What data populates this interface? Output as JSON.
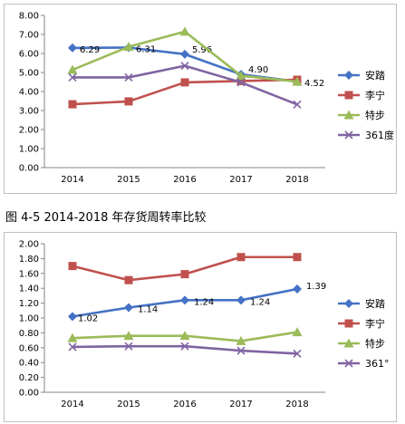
{
  "caption": "图 4-5   2014-2018 年存货周转率比较",
  "chart_data": [
    {
      "type": "line",
      "categories": [
        "2014",
        "2015",
        "2016",
        "2017",
        "2018"
      ],
      "ylim": [
        0,
        8
      ],
      "yticks": [
        "0.00",
        "1.00",
        "2.00",
        "3.00",
        "4.00",
        "5.00",
        "6.00",
        "7.00",
        "8.00"
      ],
      "grid": false,
      "legend": "right",
      "series": [
        {
          "name": "安踏",
          "color": "#4472c4",
          "marker": "diamond",
          "values": [
            6.29,
            6.31,
            5.96,
            4.9,
            4.52
          ],
          "labels": [
            "6.29",
            "6.31",
            "5.96",
            "4.90",
            "4.52"
          ]
        },
        {
          "name": "李宁",
          "color": "#c0504d",
          "marker": "square",
          "values": [
            3.33,
            3.48,
            4.48,
            4.55,
            4.62
          ],
          "labels": []
        },
        {
          "name": "特步",
          "color": "#9bbb59",
          "marker": "triangle",
          "values": [
            5.14,
            6.35,
            7.15,
            4.83,
            4.52
          ],
          "labels": []
        },
        {
          "name": "361度",
          "color": "#8064a2",
          "marker": "x",
          "values": [
            4.74,
            4.74,
            5.35,
            4.48,
            3.32
          ],
          "labels": []
        }
      ]
    },
    {
      "type": "line",
      "categories": [
        "2014",
        "2015",
        "2016",
        "2017",
        "2018"
      ],
      "ylim": [
        0,
        2
      ],
      "yticks": [
        "0.00",
        "0.20",
        "0.40",
        "0.60",
        "0.80",
        "1.00",
        "1.20",
        "1.40",
        "1.60",
        "1.80",
        "2.00"
      ],
      "grid": false,
      "legend": "right",
      "series": [
        {
          "name": "安踏",
          "color": "#4472c4",
          "marker": "diamond",
          "values": [
            1.02,
            1.14,
            1.24,
            1.24,
            1.39
          ],
          "labels": [
            "1.02",
            "1.14",
            "1.24",
            "1.24",
            "1.39"
          ]
        },
        {
          "name": "李宁",
          "color": "#c0504d",
          "marker": "square",
          "values": [
            1.7,
            1.51,
            1.59,
            1.82,
            1.82
          ],
          "labels": []
        },
        {
          "name": "特步",
          "color": "#9bbb59",
          "marker": "triangle",
          "values": [
            0.73,
            0.76,
            0.76,
            0.69,
            0.81
          ],
          "labels": []
        },
        {
          "name": "361°",
          "color": "#8064a2",
          "marker": "x",
          "values": [
            0.61,
            0.62,
            0.62,
            0.56,
            0.52
          ],
          "labels": []
        }
      ]
    }
  ]
}
